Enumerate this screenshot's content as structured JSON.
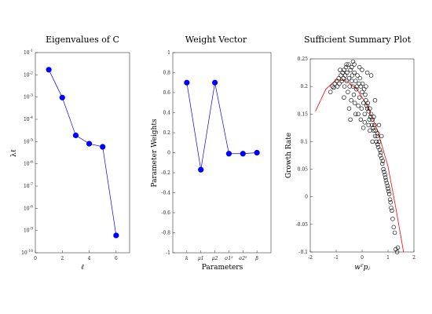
{
  "chart_data": [
    {
      "type": "line",
      "title": "Eigenvalues of C",
      "xlabel": "ℓ",
      "ylabel": "λℓ",
      "yscale": "log",
      "xlim": [
        0,
        7
      ],
      "ylim": [
        1e-10,
        0.1
      ],
      "x_ticks": [
        "0",
        "2",
        "4",
        "6"
      ],
      "y_ticks": [
        "10^-10",
        "10^-9",
        "10^-8",
        "10^-7",
        "10^-6",
        "10^-5",
        "10^-4",
        "10^-3",
        "10^-2",
        "10^-1"
      ],
      "grid": false,
      "color": "#0000ff",
      "x": [
        1,
        2,
        3,
        4,
        5,
        6
      ],
      "y": [
        0.017,
        0.00095,
        1.9e-05,
        8e-06,
        5.8e-06,
        6e-10
      ]
    },
    {
      "type": "line",
      "title": "Weight Vector",
      "xlabel": "Parameters",
      "ylabel": "Parameter Weights",
      "ylim": [
        -1,
        1
      ],
      "y_ticks": [
        "-1",
        "-0.8",
        "-0.6",
        "-0.4",
        "-0.2",
        "0",
        "0.2",
        "0.4",
        "0.6",
        "0.8",
        "1"
      ],
      "categories": [
        "k",
        "μ1",
        "μ2",
        "σ1²",
        "σ2²",
        "β"
      ],
      "grid": false,
      "color": "#0000ff",
      "values": [
        0.7,
        -0.17,
        0.7,
        -0.01,
        -0.01,
        0.0
      ]
    },
    {
      "type": "scatter",
      "title": "Sufficient Summary Plot",
      "xlabel": "wᵀpⱼ",
      "ylabel": "Growth Rate",
      "xlim": [
        -2,
        2
      ],
      "ylim": [
        -0.1,
        0.25
      ],
      "x_ticks": [
        "-2",
        "-1",
        "0",
        "1",
        "2"
      ],
      "y_ticks": [
        "-0.1",
        "-0.05",
        "0",
        "0.05",
        "0.1",
        "0.15",
        "0.2",
        "0.25"
      ],
      "grid": false,
      "marker_color": "#000000",
      "fit_color": "#ff0000",
      "fit_x": [
        -1.8,
        -1.4,
        -1.0,
        -0.6,
        -0.2,
        0.2,
        0.6,
        1.0,
        1.3,
        1.6
      ],
      "fit_y": [
        0.155,
        0.195,
        0.212,
        0.21,
        0.195,
        0.165,
        0.12,
        0.055,
        -0.02,
        -0.1
      ],
      "x": [
        -1.22,
        -1.15,
        -1.1,
        -1.05,
        -0.98,
        -0.95,
        -0.9,
        -0.88,
        -0.82,
        -0.78,
        -0.75,
        -0.72,
        -0.7,
        -0.68,
        -0.65,
        -0.62,
        -0.6,
        -0.58,
        -0.55,
        -0.52,
        -0.5,
        -0.48,
        -0.45,
        -0.42,
        -0.4,
        -0.38,
        -0.35,
        -0.32,
        -0.3,
        -0.28,
        -0.25,
        -0.22,
        -0.2,
        -0.18,
        -0.15,
        -0.12,
        -0.1,
        -0.08,
        -0.05,
        -0.02,
        0.0,
        0.02,
        0.05,
        0.08,
        0.1,
        0.12,
        0.15,
        0.18,
        0.2,
        0.22,
        0.25,
        0.28,
        0.3,
        0.32,
        0.35,
        0.38,
        0.4,
        0.42,
        0.45,
        0.48,
        0.5,
        0.52,
        0.55,
        0.58,
        0.6,
        0.62,
        0.65,
        0.68,
        0.7,
        0.72,
        0.75,
        0.78,
        0.8,
        0.82,
        0.85,
        0.88,
        0.9,
        0.92,
        0.95,
        0.98,
        1.0,
        1.02,
        1.05,
        1.08,
        1.1,
        1.12,
        1.15,
        1.18,
        -0.85,
        -0.6,
        -0.4,
        -0.3,
        -0.1,
        0.0,
        0.2,
        0.35,
        -0.7,
        -0.5,
        -0.25,
        -0.05,
        0.1,
        0.3,
        0.45,
        0.6,
        -0.35,
        0.15,
        0.5,
        -0.15,
        0.25,
        0.65,
        0.75,
        0.4,
        -0.45,
        0.05,
        1.22,
        1.26,
        1.3,
        1.35,
        1.38
      ],
      "y": [
        0.19,
        0.2,
        0.198,
        0.205,
        0.21,
        0.2,
        0.215,
        0.205,
        0.22,
        0.21,
        0.225,
        0.215,
        0.23,
        0.2,
        0.22,
        0.235,
        0.21,
        0.225,
        0.19,
        0.24,
        0.215,
        0.2,
        0.23,
        0.175,
        0.21,
        0.22,
        0.2,
        0.185,
        0.225,
        0.17,
        0.21,
        0.195,
        0.2,
        0.22,
        0.165,
        0.205,
        0.18,
        0.215,
        0.2,
        0.16,
        0.19,
        0.205,
        0.17,
        0.195,
        0.15,
        0.185,
        0.175,
        0.165,
        0.16,
        0.17,
        0.155,
        0.14,
        0.16,
        0.145,
        0.15,
        0.13,
        0.14,
        0.125,
        0.12,
        0.13,
        0.11,
        0.12,
        0.1,
        0.11,
        0.095,
        0.09,
        0.1,
        0.085,
        0.075,
        0.08,
        0.07,
        0.06,
        0.065,
        0.05,
        0.045,
        0.04,
        0.035,
        0.03,
        0.025,
        0.02,
        0.015,
        0.01,
        0.005,
        -0.005,
        -0.01,
        -0.02,
        -0.025,
        -0.04,
        0.23,
        0.24,
        0.235,
        0.24,
        0.235,
        0.23,
        0.225,
        0.22,
        0.18,
        0.16,
        0.15,
        0.14,
        0.135,
        0.12,
        0.145,
        0.115,
        0.245,
        0.2,
        0.175,
        0.15,
        0.13,
        0.13,
        0.11,
        0.1,
        0.14,
        0.125,
        -0.055,
        -0.065,
        -0.095,
        -0.1,
        -0.092
      ]
    }
  ]
}
